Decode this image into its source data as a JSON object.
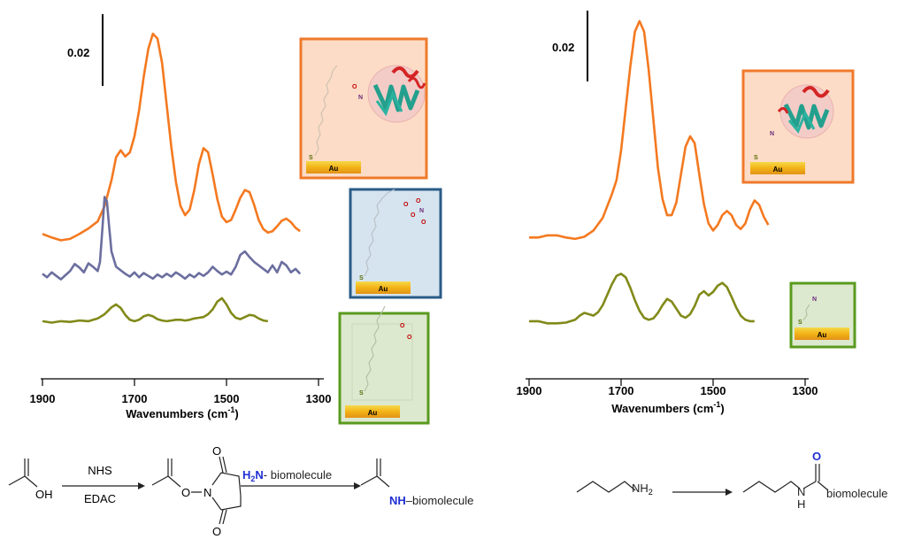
{
  "chart_data": [
    {
      "type": "line",
      "xlabel": "Wavenumbers (cm",
      "xlabel_sup": "-1",
      "xlabel_end": ")",
      "x_reversed": true,
      "xlim": [
        1900,
        1300
      ],
      "xticks": [
        "1900",
        "1700",
        "1500",
        "1300"
      ],
      "scale_bar": "0.02",
      "grid": false,
      "series": [
        {
          "color": "#f47920",
          "points": [
            [
              1900,
              0.205
            ],
            [
              1880,
              0.2
            ],
            [
              1860,
              0.196
            ],
            [
              1840,
              0.198
            ],
            [
              1820,
              0.205
            ],
            [
              1800,
              0.213
            ],
            [
              1780,
              0.223
            ],
            [
              1765,
              0.245
            ],
            [
              1750,
              0.282
            ],
            [
              1740,
              0.315
            ],
            [
              1730,
              0.325
            ],
            [
              1720,
              0.316
            ],
            [
              1710,
              0.322
            ],
            [
              1700,
              0.345
            ],
            [
              1690,
              0.382
            ],
            [
              1680,
              0.43
            ],
            [
              1670,
              0.47
            ],
            [
              1660,
              0.492
            ],
            [
              1650,
              0.485
            ],
            [
              1640,
              0.45
            ],
            [
              1630,
              0.39
            ],
            [
              1620,
              0.33
            ],
            [
              1610,
              0.28
            ],
            [
              1600,
              0.245
            ],
            [
              1590,
              0.232
            ],
            [
              1580,
              0.24
            ],
            [
              1570,
              0.268
            ],
            [
              1560,
              0.305
            ],
            [
              1550,
              0.328
            ],
            [
              1540,
              0.322
            ],
            [
              1530,
              0.29
            ],
            [
              1520,
              0.255
            ],
            [
              1510,
              0.23
            ],
            [
              1500,
              0.222
            ],
            [
              1490,
              0.225
            ],
            [
              1480,
              0.24
            ],
            [
              1470,
              0.257
            ],
            [
              1460,
              0.268
            ],
            [
              1450,
              0.265
            ],
            [
              1440,
              0.247
            ],
            [
              1430,
              0.225
            ],
            [
              1420,
              0.212
            ],
            [
              1410,
              0.207
            ],
            [
              1400,
              0.209
            ],
            [
              1390,
              0.216
            ],
            [
              1380,
              0.224
            ],
            [
              1370,
              0.227
            ],
            [
              1360,
              0.222
            ],
            [
              1350,
              0.214
            ],
            [
              1340,
              0.209
            ]
          ]
        },
        {
          "color": "#6b6e9e",
          "points": [
            [
              1900,
              0.148
            ],
            [
              1890,
              0.143
            ],
            [
              1880,
              0.15
            ],
            [
              1870,
              0.145
            ],
            [
              1860,
              0.14
            ],
            [
              1850,
              0.146
            ],
            [
              1840,
              0.152
            ],
            [
              1830,
              0.162
            ],
            [
              1820,
              0.157
            ],
            [
              1810,
              0.15
            ],
            [
              1800,
              0.163
            ],
            [
              1790,
              0.158
            ],
            [
              1780,
              0.152
            ],
            [
              1775,
              0.165
            ],
            [
              1770,
              0.21
            ],
            [
              1765,
              0.258
            ],
            [
              1760,
              0.252
            ],
            [
              1755,
              0.215
            ],
            [
              1750,
              0.18
            ],
            [
              1740,
              0.158
            ],
            [
              1730,
              0.153
            ],
            [
              1720,
              0.148
            ],
            [
              1710,
              0.144
            ],
            [
              1700,
              0.15
            ],
            [
              1690,
              0.143
            ],
            [
              1680,
              0.149
            ],
            [
              1670,
              0.145
            ],
            [
              1660,
              0.141
            ],
            [
              1650,
              0.147
            ],
            [
              1640,
              0.143
            ],
            [
              1630,
              0.148
            ],
            [
              1620,
              0.144
            ],
            [
              1610,
              0.15
            ],
            [
              1600,
              0.146
            ],
            [
              1590,
              0.141
            ],
            [
              1580,
              0.147
            ],
            [
              1570,
              0.143
            ],
            [
              1560,
              0.149
            ],
            [
              1550,
              0.145
            ],
            [
              1540,
              0.15
            ],
            [
              1530,
              0.158
            ],
            [
              1520,
              0.152
            ],
            [
              1510,
              0.147
            ],
            [
              1500,
              0.151
            ],
            [
              1490,
              0.147
            ],
            [
              1480,
              0.158
            ],
            [
              1470,
              0.175
            ],
            [
              1460,
              0.18
            ],
            [
              1450,
              0.172
            ],
            [
              1440,
              0.165
            ],
            [
              1430,
              0.16
            ],
            [
              1420,
              0.155
            ],
            [
              1410,
              0.15
            ],
            [
              1400,
              0.16
            ],
            [
              1390,
              0.15
            ],
            [
              1380,
              0.165
            ],
            [
              1370,
              0.16
            ],
            [
              1360,
              0.15
            ],
            [
              1350,
              0.155
            ],
            [
              1340,
              0.148
            ]
          ]
        },
        {
          "color": "#818a19",
          "points": [
            [
              1900,
              0.08
            ],
            [
              1880,
              0.078
            ],
            [
              1860,
              0.08
            ],
            [
              1840,
              0.079
            ],
            [
              1820,
              0.081
            ],
            [
              1800,
              0.08
            ],
            [
              1780,
              0.084
            ],
            [
              1765,
              0.09
            ],
            [
              1750,
              0.1
            ],
            [
              1740,
              0.104
            ],
            [
              1730,
              0.099
            ],
            [
              1720,
              0.089
            ],
            [
              1710,
              0.082
            ],
            [
              1700,
              0.08
            ],
            [
              1690,
              0.082
            ],
            [
              1680,
              0.087
            ],
            [
              1670,
              0.089
            ],
            [
              1660,
              0.087
            ],
            [
              1650,
              0.083
            ],
            [
              1640,
              0.081
            ],
            [
              1630,
              0.08
            ],
            [
              1620,
              0.081
            ],
            [
              1610,
              0.082
            ],
            [
              1600,
              0.082
            ],
            [
              1590,
              0.081
            ],
            [
              1580,
              0.082
            ],
            [
              1570,
              0.084
            ],
            [
              1560,
              0.085
            ],
            [
              1550,
              0.086
            ],
            [
              1540,
              0.09
            ],
            [
              1530,
              0.097
            ],
            [
              1520,
              0.108
            ],
            [
              1510,
              0.113
            ],
            [
              1500,
              0.104
            ],
            [
              1490,
              0.092
            ],
            [
              1480,
              0.085
            ],
            [
              1470,
              0.083
            ],
            [
              1460,
              0.086
            ],
            [
              1450,
              0.089
            ],
            [
              1440,
              0.088
            ],
            [
              1430,
              0.084
            ],
            [
              1420,
              0.081
            ],
            [
              1410,
              0.08
            ]
          ]
        }
      ]
    },
    {
      "type": "line",
      "xlabel": "Wavenumbers (cm",
      "xlabel_sup": "-1",
      "xlabel_end": ")",
      "x_reversed": true,
      "xlim": [
        1900,
        1300
      ],
      "xticks": [
        "1900",
        "1700",
        "1500",
        "1300"
      ],
      "scale_bar": "0.02",
      "grid": false,
      "series": [
        {
          "color": "#f47920",
          "points": [
            [
              1900,
              0.2
            ],
            [
              1880,
              0.2
            ],
            [
              1860,
              0.203
            ],
            [
              1840,
              0.203
            ],
            [
              1820,
              0.2
            ],
            [
              1800,
              0.198
            ],
            [
              1780,
              0.201
            ],
            [
              1760,
              0.21
            ],
            [
              1740,
              0.228
            ],
            [
              1730,
              0.245
            ],
            [
              1720,
              0.262
            ],
            [
              1710,
              0.282
            ],
            [
              1700,
              0.325
            ],
            [
              1690,
              0.385
            ],
            [
              1680,
              0.445
            ],
            [
              1670,
              0.495
            ],
            [
              1660,
              0.51
            ],
            [
              1650,
              0.495
            ],
            [
              1640,
              0.44
            ],
            [
              1630,
              0.37
            ],
            [
              1620,
              0.3
            ],
            [
              1610,
              0.255
            ],
            [
              1600,
              0.232
            ],
            [
              1590,
              0.232
            ],
            [
              1580,
              0.25
            ],
            [
              1570,
              0.29
            ],
            [
              1560,
              0.33
            ],
            [
              1550,
              0.345
            ],
            [
              1540,
              0.335
            ],
            [
              1530,
              0.29
            ],
            [
              1520,
              0.248
            ],
            [
              1510,
              0.22
            ],
            [
              1500,
              0.21
            ],
            [
              1490,
              0.218
            ],
            [
              1480,
              0.232
            ],
            [
              1470,
              0.238
            ],
            [
              1460,
              0.232
            ],
            [
              1450,
              0.218
            ],
            [
              1440,
              0.212
            ],
            [
              1430,
              0.22
            ],
            [
              1420,
              0.24
            ],
            [
              1410,
              0.253
            ],
            [
              1400,
              0.247
            ],
            [
              1390,
              0.23
            ],
            [
              1380,
              0.218
            ]
          ]
        },
        {
          "color": "#818a19",
          "points": [
            [
              1900,
              0.08
            ],
            [
              1880,
              0.08
            ],
            [
              1860,
              0.077
            ],
            [
              1840,
              0.077
            ],
            [
              1820,
              0.078
            ],
            [
              1800,
              0.082
            ],
            [
              1790,
              0.088
            ],
            [
              1780,
              0.092
            ],
            [
              1770,
              0.09
            ],
            [
              1760,
              0.088
            ],
            [
              1750,
              0.093
            ],
            [
              1740,
              0.103
            ],
            [
              1730,
              0.118
            ],
            [
              1720,
              0.133
            ],
            [
              1710,
              0.145
            ],
            [
              1700,
              0.148
            ],
            [
              1690,
              0.143
            ],
            [
              1680,
              0.128
            ],
            [
              1670,
              0.11
            ],
            [
              1660,
              0.095
            ],
            [
              1650,
              0.085
            ],
            [
              1640,
              0.082
            ],
            [
              1630,
              0.084
            ],
            [
              1620,
              0.092
            ],
            [
              1610,
              0.103
            ],
            [
              1600,
              0.112
            ],
            [
              1590,
              0.108
            ],
            [
              1580,
              0.098
            ],
            [
              1570,
              0.088
            ],
            [
              1560,
              0.085
            ],
            [
              1550,
              0.09
            ],
            [
              1540,
              0.102
            ],
            [
              1530,
              0.118
            ],
            [
              1520,
              0.123
            ],
            [
              1510,
              0.117
            ],
            [
              1500,
              0.122
            ],
            [
              1490,
              0.131
            ],
            [
              1480,
              0.135
            ],
            [
              1470,
              0.129
            ],
            [
              1460,
              0.115
            ],
            [
              1450,
              0.1
            ],
            [
              1440,
              0.088
            ],
            [
              1430,
              0.082
            ],
            [
              1420,
              0.08
            ],
            [
              1410,
              0.08
            ]
          ]
        }
      ]
    }
  ],
  "schematic_labels": {
    "au": "Au",
    "s": "S",
    "o": "O",
    "n": "N"
  },
  "reaction_left": {
    "acid_oh": "OH",
    "reagent_top": "NHS",
    "reagent_bottom": "EDAC",
    "ester_o": "O",
    "ester_n": "N",
    "amine_h2n": "H",
    "amine_sub": "2",
    "amine_n": "N",
    "amine_rest": "- biomolecule",
    "product_nh": "NH",
    "product_rest": "–biomolecule"
  },
  "reaction_right": {
    "nh2": "NH",
    "nh2_sub": "2",
    "product_o": "O",
    "product_n": "N",
    "product_h": "H",
    "product_rest": "biomolecule"
  },
  "colors": {
    "orange": "#f47920",
    "blue_line": "#6b6e9e",
    "olive": "#818a19",
    "frame_orange": "#ef7a2c",
    "frame_blue": "#2a5b87",
    "frame_green": "#5a9a1e",
    "fill_orange": "#fcdcc6",
    "fill_blue": "#d6e4ef",
    "fill_green": "#dde9cf",
    "heteroatom_blue": "#1f2fd4"
  }
}
